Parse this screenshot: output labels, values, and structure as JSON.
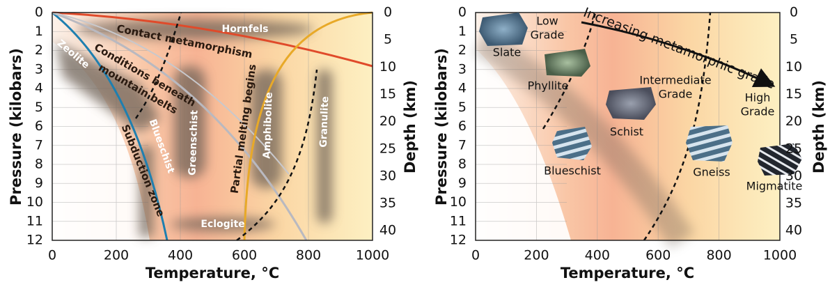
{
  "left_panel": {
    "y_label": "Pressure (kilobars)",
    "y2_label": "Depth (km)",
    "x_label": "Temperature, °C",
    "pressure_ticks": [
      0,
      1,
      2,
      3,
      4,
      5,
      6,
      7,
      8,
      9,
      10,
      11,
      12
    ],
    "depth_ticks": [
      0,
      5,
      10,
      15,
      20,
      25,
      30,
      35,
      40
    ],
    "temperature_ticks": [
      0,
      200,
      400,
      600,
      800,
      1000
    ],
    "labels": {
      "hornfels": "Hornfels",
      "contact": "Contact metamorphism",
      "zeolite": "Zeolite",
      "conditions_1": "Conditions beneath",
      "conditions_2": "mountain belts",
      "subduction": "Subduction zone",
      "blueschist": "Blueschist",
      "greenschist": "Greenschist",
      "melting": "Partial melting begins",
      "amphibolite": "Amphibolite",
      "granulite": "Granulite",
      "eclogite": "Eclogite"
    }
  },
  "right_panel": {
    "y_label": "Pressure (kilobars)",
    "y2_label": "Depth (km)",
    "x_label": "Temperature, °C",
    "pressure_ticks": [
      0,
      1,
      2,
      3,
      4,
      5,
      6,
      7,
      8,
      9,
      10,
      11,
      12
    ],
    "depth_ticks": [
      0,
      5,
      10,
      15,
      20,
      25,
      30,
      35,
      40
    ],
    "temperature_ticks": [
      0,
      200,
      400,
      600,
      800,
      1000
    ],
    "labels": {
      "slate": "Slate",
      "low_grade_1": "Low",
      "low_grade_2": "Grade",
      "increasing": "Increasing metamorphic grade",
      "phyllite": "Phyllite",
      "intermediate_1": "Intermediate",
      "intermediate_2": "Grade",
      "high_grade_1": "High",
      "high_grade_2": "Grade",
      "schist": "Schist",
      "blueschist": "Blueschist",
      "gneiss": "Gneiss",
      "migmatite": "Migmatite"
    }
  }
}
